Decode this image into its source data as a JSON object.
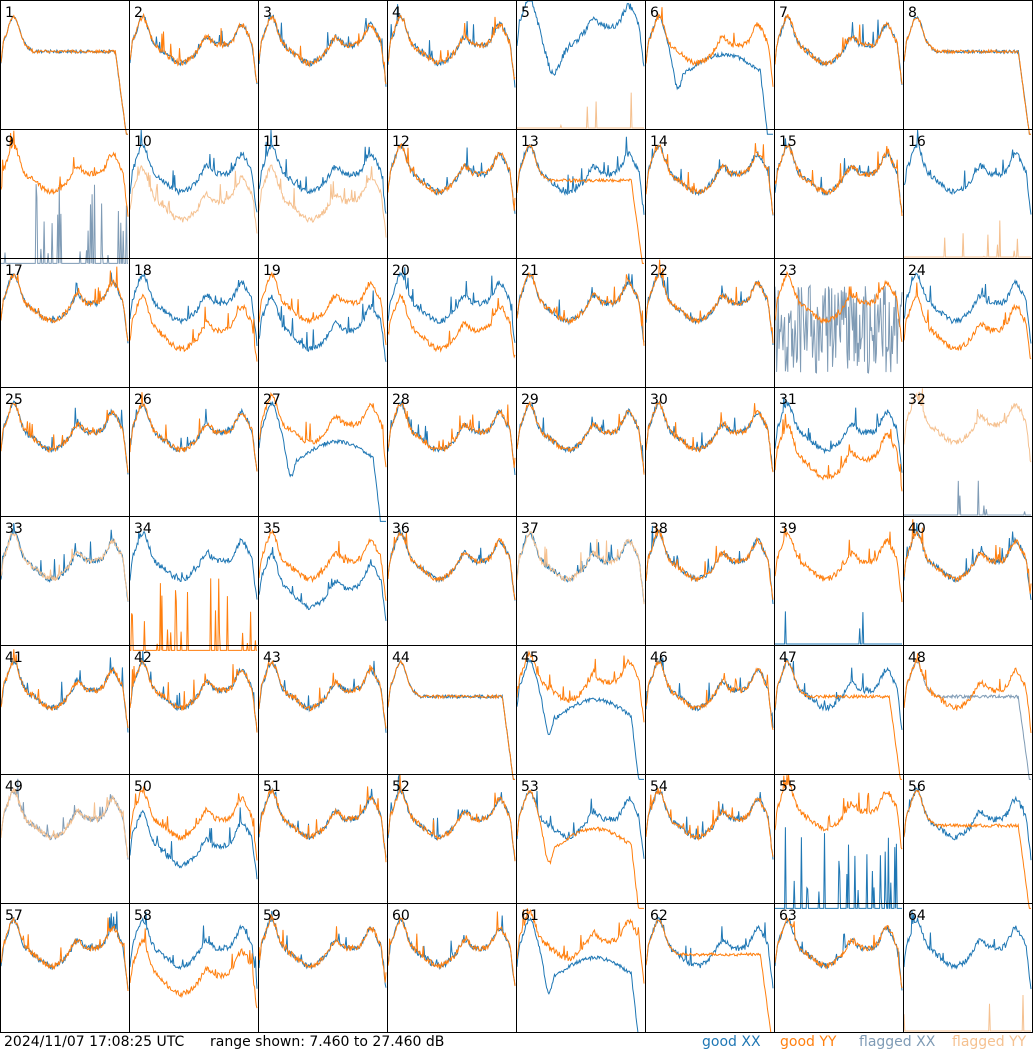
{
  "footer": {
    "timestamp": "2024/11/07 17:08:25 UTC",
    "range_text": "range shown: 7.460 to 27.460 dB"
  },
  "legend": [
    {
      "label": "good XX",
      "color": "#1f77b4"
    },
    {
      "label": "good YY",
      "color": "#ff7f0e"
    },
    {
      "label": "flagged XX",
      "color": "#7f9bb5"
    },
    {
      "label": "flagged YY",
      "color": "#f5c190"
    }
  ],
  "chart_data": {
    "type": "line",
    "layout": "8x8 small multiples",
    "ylim": [
      7.46,
      27.46
    ],
    "yunit": "dB",
    "series_names": [
      "good XX",
      "good YY",
      "flagged XX",
      "flagged YY"
    ],
    "panels": [
      {
        "id": "1",
        "xx": "low-drop",
        "yy": "low-drop",
        "xxf": false,
        "yyf": false
      },
      {
        "id": "2",
        "xx": "normal",
        "yy": "normal",
        "xxf": false,
        "yyf": false
      },
      {
        "id": "3",
        "xx": "normal",
        "yy": "normal",
        "xxf": false,
        "yyf": false
      },
      {
        "id": "4",
        "xx": "normal",
        "yy": "normal",
        "xxf": false,
        "yyf": false
      },
      {
        "id": "5",
        "xx": "high-dip",
        "yy": "dead",
        "xxf": false,
        "yyf": true
      },
      {
        "id": "6",
        "xx": "dip-drop",
        "yy": "normal",
        "xxf": false,
        "yyf": false
      },
      {
        "id": "7",
        "xx": "normal",
        "yy": "normal",
        "xxf": false,
        "yyf": false
      },
      {
        "id": "8",
        "xx": "low-drop",
        "yy": "low-drop",
        "xxf": false,
        "yyf": false
      },
      {
        "id": "9",
        "xx": "spikes",
        "yy": "normal",
        "xxf": true,
        "yyf": false
      },
      {
        "id": "10",
        "xx": "normal",
        "yy": "lower",
        "xxf": false,
        "yyf": true
      },
      {
        "id": "11",
        "xx": "normal",
        "yy": "lower",
        "xxf": false,
        "yyf": true
      },
      {
        "id": "12",
        "xx": "normal",
        "yy": "normal",
        "xxf": false,
        "yyf": false
      },
      {
        "id": "13",
        "xx": "normal",
        "yy": "low-drop",
        "xxf": false,
        "yyf": false
      },
      {
        "id": "14",
        "xx": "normal",
        "yy": "normal",
        "xxf": false,
        "yyf": false
      },
      {
        "id": "15",
        "xx": "normal",
        "yy": "normal",
        "xxf": false,
        "yyf": false
      },
      {
        "id": "16",
        "xx": "normal",
        "yy": "dead",
        "xxf": false,
        "yyf": true
      },
      {
        "id": "17",
        "xx": "normal",
        "yy": "normal",
        "xxf": false,
        "yyf": false
      },
      {
        "id": "18",
        "xx": "normal",
        "yy": "lower",
        "xxf": false,
        "yyf": false
      },
      {
        "id": "19",
        "xx": "lower",
        "yy": "normal",
        "xxf": false,
        "yyf": false
      },
      {
        "id": "20",
        "xx": "normal",
        "yy": "lower",
        "xxf": false,
        "yyf": false
      },
      {
        "id": "21",
        "xx": "normal",
        "yy": "normal",
        "xxf": false,
        "yyf": false
      },
      {
        "id": "22",
        "xx": "normal",
        "yy": "normal",
        "xxf": false,
        "yyf": false
      },
      {
        "id": "23",
        "xx": "noisy",
        "yy": "normal",
        "xxf": true,
        "yyf": false
      },
      {
        "id": "24",
        "xx": "normal",
        "yy": "lower",
        "xxf": false,
        "yyf": false
      },
      {
        "id": "25",
        "xx": "normal",
        "yy": "normal",
        "xxf": false,
        "yyf": false
      },
      {
        "id": "26",
        "xx": "normal",
        "yy": "normal",
        "xxf": false,
        "yyf": false
      },
      {
        "id": "27",
        "xx": "dip-drop",
        "yy": "high",
        "xxf": false,
        "yyf": false
      },
      {
        "id": "28",
        "xx": "normal",
        "yy": "normal",
        "xxf": false,
        "yyf": false
      },
      {
        "id": "29",
        "xx": "normal",
        "yy": "normal",
        "xxf": false,
        "yyf": false
      },
      {
        "id": "30",
        "xx": "normal",
        "yy": "normal",
        "xxf": false,
        "yyf": false
      },
      {
        "id": "31",
        "xx": "normal",
        "yy": "lower",
        "xxf": false,
        "yyf": false
      },
      {
        "id": "32",
        "xx": "dead",
        "yy": "high",
        "xxf": true,
        "yyf": true
      },
      {
        "id": "33",
        "xx": "normal",
        "yy": "normal",
        "xxf": false,
        "yyf": true
      },
      {
        "id": "34",
        "xx": "normal",
        "yy": "spikes",
        "xxf": false,
        "yyf": false
      },
      {
        "id": "35",
        "xx": "lower",
        "yy": "normal",
        "xxf": false,
        "yyf": false
      },
      {
        "id": "36",
        "xx": "normal",
        "yy": "normal",
        "xxf": false,
        "yyf": false
      },
      {
        "id": "37",
        "xx": "normal",
        "yy": "normal",
        "xxf": false,
        "yyf": true
      },
      {
        "id": "38",
        "xx": "normal",
        "yy": "normal",
        "xxf": false,
        "yyf": false
      },
      {
        "id": "39",
        "xx": "dead",
        "yy": "normal",
        "xxf": false,
        "yyf": false
      },
      {
        "id": "40",
        "xx": "normal",
        "yy": "normal",
        "xxf": false,
        "yyf": false
      },
      {
        "id": "41",
        "xx": "normal",
        "yy": "normal",
        "xxf": false,
        "yyf": false
      },
      {
        "id": "42",
        "xx": "normal",
        "yy": "normal",
        "xxf": false,
        "yyf": false
      },
      {
        "id": "43",
        "xx": "normal",
        "yy": "normal",
        "xxf": false,
        "yyf": false
      },
      {
        "id": "44",
        "xx": "low-drop",
        "yy": "low-drop",
        "xxf": false,
        "yyf": false
      },
      {
        "id": "45",
        "xx": "dip-drop",
        "yy": "high",
        "xxf": false,
        "yyf": false
      },
      {
        "id": "46",
        "xx": "normal",
        "yy": "normal",
        "xxf": false,
        "yyf": false
      },
      {
        "id": "47",
        "xx": "normal",
        "yy": "low-drop",
        "xxf": false,
        "yyf": false
      },
      {
        "id": "48",
        "xx": "low-drop",
        "yy": "normal",
        "xxf": true,
        "yyf": false
      },
      {
        "id": "49",
        "xx": "normal",
        "yy": "normal",
        "xxf": true,
        "yyf": true
      },
      {
        "id": "50",
        "xx": "lower",
        "yy": "normal",
        "xxf": false,
        "yyf": false
      },
      {
        "id": "51",
        "xx": "normal",
        "yy": "normal",
        "xxf": false,
        "yyf": false
      },
      {
        "id": "52",
        "xx": "normal",
        "yy": "normal",
        "xxf": false,
        "yyf": false
      },
      {
        "id": "53",
        "xx": "normal",
        "yy": "dip-drop",
        "xxf": false,
        "yyf": false
      },
      {
        "id": "54",
        "xx": "normal",
        "yy": "normal",
        "xxf": false,
        "yyf": false
      },
      {
        "id": "55",
        "xx": "spikes",
        "yy": "high",
        "xxf": false,
        "yyf": false
      },
      {
        "id": "56",
        "xx": "normal",
        "yy": "low-drop",
        "xxf": false,
        "yyf": false
      },
      {
        "id": "57",
        "xx": "normal",
        "yy": "normal",
        "xxf": false,
        "yyf": false
      },
      {
        "id": "58",
        "xx": "normal",
        "yy": "lower",
        "xxf": false,
        "yyf": false
      },
      {
        "id": "59",
        "xx": "normal",
        "yy": "normal",
        "xxf": false,
        "yyf": false
      },
      {
        "id": "60",
        "xx": "normal",
        "yy": "normal",
        "xxf": false,
        "yyf": false
      },
      {
        "id": "61",
        "xx": "dip-drop",
        "yy": "high",
        "xxf": false,
        "yyf": false
      },
      {
        "id": "62",
        "xx": "normal",
        "yy": "low-drop",
        "xxf": false,
        "yyf": false
      },
      {
        "id": "63",
        "xx": "normal",
        "yy": "normal",
        "xxf": false,
        "yyf": false
      },
      {
        "id": "64",
        "xx": "normal",
        "yy": "dead",
        "xxf": false,
        "yyf": true
      }
    ]
  }
}
